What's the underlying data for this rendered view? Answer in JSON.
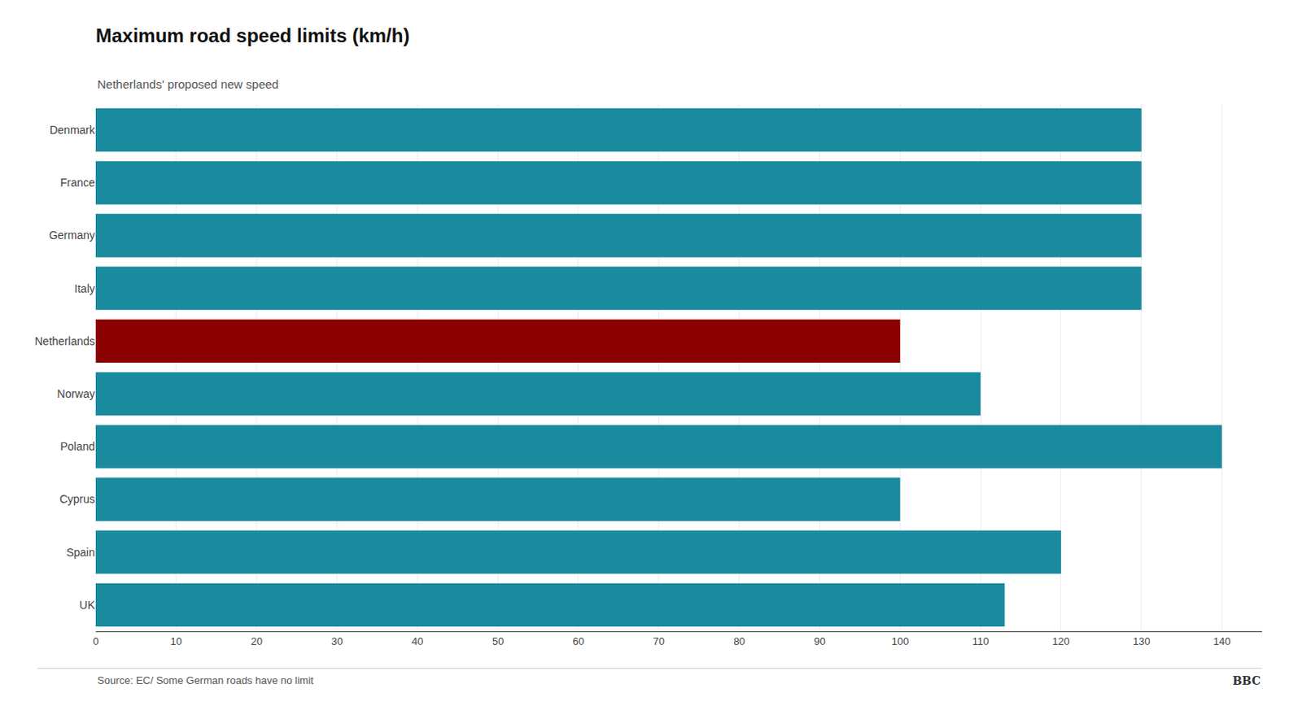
{
  "chart_data": {
    "type": "bar",
    "orientation": "horizontal",
    "title": "Maximum road speed limits (km/h)",
    "subtitle": "Netherlands' proposed new speed",
    "annotations": [
      "Source: EC/ Some German roads have no limit",
      "BBC"
    ],
    "categories": [
      "Denmark",
      "France",
      "Germany",
      "Italy",
      "Netherlands",
      "Norway",
      "Poland",
      "Cyprus",
      "Spain",
      "UK"
    ],
    "values": [
      130,
      130,
      130,
      130,
      100,
      110,
      140,
      100,
      120,
      113
    ],
    "colors": [
      "#1a8a9e",
      "#1a8a9e",
      "#1a8a9e",
      "#1a8a9e",
      "#8b0000",
      "#1a8a9e",
      "#1a8a9e",
      "#1a8a9e",
      "#1a8a9e",
      "#1a8a9e"
    ],
    "xlim": [
      0,
      145
    ],
    "xticks": [
      0,
      10,
      20,
      30,
      40,
      50,
      60,
      70,
      80,
      90,
      100,
      110,
      120,
      130,
      140
    ],
    "grid": true
  }
}
